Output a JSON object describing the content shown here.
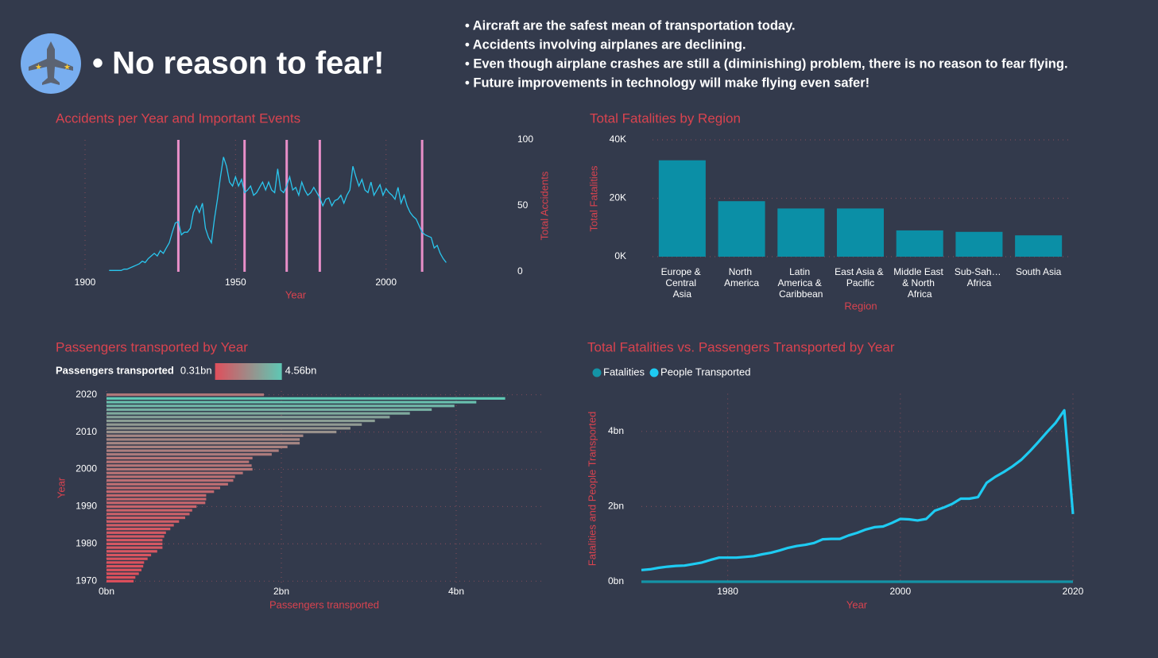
{
  "header": {
    "title": "• No reason to fear!",
    "bullets": [
      "• Aircraft are the safest mean of transportation today.",
      "• Accidents involving airplanes are declining.",
      "• Even though airplane crashes are still a (diminishing) problem, there is no reason to fear flying.",
      "• Future improvements in technology will make flying even safer!"
    ]
  },
  "chart_data": [
    {
      "type": "line",
      "title": "Accidents per Year and Important Events",
      "x_label": "Year",
      "y_label": "Total Accidents",
      "color": "#2ac6ee",
      "event_color": "#e98fc9",
      "y_axis_position": "right",
      "grid": "x",
      "xlim": [
        1900,
        2022
      ],
      "xticks": [
        1900,
        1950,
        2000
      ],
      "ylim": [
        0,
        100
      ],
      "yticks": [
        0,
        50,
        100
      ],
      "events": [
        1931,
        1953,
        1967,
        1978,
        2012
      ],
      "x": [
        1908,
        1909,
        1910,
        1911,
        1912,
        1913,
        1914,
        1915,
        1916,
        1917,
        1918,
        1919,
        1920,
        1921,
        1922,
        1923,
        1924,
        1925,
        1926,
        1927,
        1928,
        1929,
        1930,
        1931,
        1932,
        1933,
        1934,
        1935,
        1936,
        1937,
        1938,
        1939,
        1940,
        1941,
        1942,
        1943,
        1944,
        1945,
        1946,
        1947,
        1948,
        1949,
        1950,
        1951,
        1952,
        1953,
        1954,
        1955,
        1956,
        1957,
        1958,
        1959,
        1960,
        1961,
        1962,
        1963,
        1964,
        1965,
        1966,
        1967,
        1968,
        1969,
        1970,
        1971,
        1972,
        1973,
        1974,
        1975,
        1976,
        1977,
        1978,
        1979,
        1980,
        1981,
        1982,
        1983,
        1984,
        1985,
        1986,
        1987,
        1988,
        1989,
        1990,
        1991,
        1992,
        1993,
        1994,
        1995,
        1996,
        1997,
        1998,
        1999,
        2000,
        2001,
        2002,
        2003,
        2004,
        2005,
        2006,
        2007,
        2008,
        2009,
        2010,
        2011,
        2012,
        2013,
        2014,
        2015,
        2016,
        2017,
        2018,
        2019,
        2020
      ],
      "values": [
        1,
        1,
        1,
        1,
        1,
        2,
        2,
        3,
        4,
        5,
        6,
        8,
        7,
        10,
        12,
        14,
        12,
        16,
        14,
        18,
        22,
        30,
        37,
        38,
        28,
        30,
        30,
        33,
        45,
        50,
        45,
        52,
        33,
        26,
        22,
        40,
        55,
        72,
        87,
        80,
        68,
        65,
        72,
        65,
        70,
        60,
        62,
        65,
        58,
        60,
        64,
        68,
        62,
        68,
        62,
        60,
        78,
        62,
        60,
        65,
        72,
        62,
        64,
        58,
        68,
        62,
        58,
        60,
        64,
        60,
        56,
        50,
        55,
        56,
        50,
        54,
        55,
        58,
        52,
        58,
        62,
        80,
        72,
        65,
        70,
        62,
        60,
        68,
        58,
        62,
        66,
        58,
        63,
        60,
        58,
        55,
        64,
        52,
        58,
        50,
        45,
        42,
        40,
        35,
        30,
        28,
        27,
        26,
        18,
        20,
        14,
        10,
        7
      ]
    },
    {
      "type": "bar",
      "title": "Total Fatalities by Region",
      "x_label": "Region",
      "y_label": "Total Fatalities",
      "color": "#0b8fa6",
      "grid": "y",
      "categories": [
        "Europe & Central Asia",
        "North America",
        "Latin America & Caribbean",
        "East Asia & Pacific",
        "Middle East & North Africa",
        "Sub-Sah… Africa",
        "South Asia"
      ],
      "values": [
        33000,
        19000,
        16500,
        16500,
        9000,
        8500,
        7300
      ],
      "ylim": [
        0,
        40000
      ],
      "yticks": [
        {
          "value": 0,
          "label": "0K"
        },
        {
          "value": 20000,
          "label": "20K"
        },
        {
          "value": 40000,
          "label": "40K"
        }
      ]
    },
    {
      "type": "barh",
      "title": "Passengers transported by Year",
      "x_label": "Passengers transported",
      "y_label": "Year",
      "grid": "both",
      "color_scale": {
        "title": "Passengers transported",
        "colors": [
          "#df4f5c",
          "#5ec8b4"
        ],
        "min": {
          "value": 0.31,
          "label": "0.31bn"
        },
        "max": {
          "value": 4.56,
          "label": "4.56bn"
        }
      },
      "xlim": [
        0,
        5
      ],
      "xticks": [
        {
          "value": 0,
          "label": "0bn"
        },
        {
          "value": 2,
          "label": "2bn"
        },
        {
          "value": 4,
          "label": "4bn"
        }
      ],
      "ylim": [
        1969,
        2021
      ],
      "yticks": [
        1970,
        1980,
        1990,
        2000,
        2010,
        2020
      ],
      "y": [
        1970,
        1971,
        1972,
        1973,
        1974,
        1975,
        1976,
        1977,
        1978,
        1979,
        1980,
        1981,
        1982,
        1983,
        1984,
        1985,
        1986,
        1987,
        1988,
        1989,
        1990,
        1991,
        1992,
        1993,
        1994,
        1995,
        1996,
        1997,
        1998,
        1999,
        2000,
        2001,
        2002,
        2003,
        2004,
        2005,
        2006,
        2007,
        2008,
        2009,
        2010,
        2011,
        2012,
        2013,
        2014,
        2015,
        2016,
        2017,
        2018,
        2019,
        2020
      ],
      "values": [
        0.31,
        0.33,
        0.37,
        0.4,
        0.42,
        0.43,
        0.47,
        0.51,
        0.58,
        0.64,
        0.64,
        0.64,
        0.66,
        0.68,
        0.73,
        0.77,
        0.83,
        0.9,
        0.95,
        0.98,
        1.03,
        1.13,
        1.14,
        1.14,
        1.23,
        1.3,
        1.39,
        1.45,
        1.47,
        1.56,
        1.67,
        1.66,
        1.63,
        1.67,
        1.89,
        1.97,
        2.07,
        2.21,
        2.21,
        2.25,
        2.63,
        2.79,
        2.92,
        3.07,
        3.24,
        3.47,
        3.72,
        3.98,
        4.23,
        4.56,
        1.8
      ]
    },
    {
      "type": "line",
      "title": "Total Fatalities vs. Passengers Transported by Year",
      "x_label": "Year",
      "y_label": "Fatalities and People Transported",
      "y_axis_position": "left",
      "grid": "both",
      "xlim": [
        1970,
        2020
      ],
      "xticks": [
        1980,
        2000,
        2020
      ],
      "ylim": [
        0,
        5
      ],
      "yticks": [
        {
          "value": 0,
          "label": "0bn"
        },
        {
          "value": 2,
          "label": "2bn"
        },
        {
          "value": 4,
          "label": "4bn"
        }
      ],
      "x": [
        1970,
        1971,
        1972,
        1973,
        1974,
        1975,
        1976,
        1977,
        1978,
        1979,
        1980,
        1981,
        1982,
        1983,
        1984,
        1985,
        1986,
        1987,
        1988,
        1989,
        1990,
        1991,
        1992,
        1993,
        1994,
        1995,
        1996,
        1997,
        1998,
        1999,
        2000,
        2001,
        2002,
        2003,
        2004,
        2005,
        2006,
        2007,
        2008,
        2009,
        2010,
        2011,
        2012,
        2013,
        2014,
        2015,
        2016,
        2017,
        2018,
        2019,
        2020
      ],
      "series": [
        {
          "name": "Fatalities",
          "color": "#1493a6",
          "values": [
            0,
            0,
            0,
            0,
            0,
            0,
            0,
            0,
            0,
            0,
            0,
            0,
            0,
            0,
            0,
            0,
            0,
            0,
            0,
            0,
            0,
            0,
            0,
            0,
            0,
            0,
            0,
            0,
            0,
            0,
            0,
            0,
            0,
            0,
            0,
            0,
            0,
            0,
            0,
            0,
            0,
            0,
            0,
            0,
            0,
            0,
            0,
            0,
            0,
            0,
            0
          ]
        },
        {
          "name": "People Transported",
          "color": "#1ecbf2",
          "values": [
            0.31,
            0.33,
            0.37,
            0.4,
            0.42,
            0.43,
            0.47,
            0.51,
            0.58,
            0.64,
            0.64,
            0.64,
            0.66,
            0.68,
            0.73,
            0.77,
            0.83,
            0.9,
            0.95,
            0.98,
            1.03,
            1.13,
            1.14,
            1.14,
            1.23,
            1.3,
            1.39,
            1.45,
            1.47,
            1.56,
            1.67,
            1.66,
            1.63,
            1.67,
            1.89,
            1.97,
            2.07,
            2.21,
            2.21,
            2.25,
            2.63,
            2.79,
            2.92,
            3.07,
            3.24,
            3.47,
            3.72,
            3.98,
            4.23,
            4.56,
            1.8
          ]
        }
      ]
    }
  ]
}
